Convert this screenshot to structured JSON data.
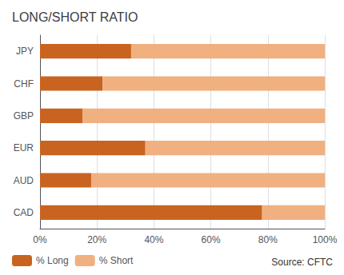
{
  "chart_data": {
    "type": "bar",
    "orientation": "horizontal",
    "stacked": true,
    "title": "LONG/SHORT RATIO",
    "categories": [
      "CAD",
      "AUD",
      "EUR",
      "GBP",
      "CHF",
      "JPY"
    ],
    "series": [
      {
        "name": "% Long",
        "color": "#C86420",
        "values": [
          78,
          18,
          37,
          15,
          22,
          32
        ]
      },
      {
        "name": "% Short",
        "color": "#F0B080",
        "values": [
          22,
          82,
          63,
          85,
          78,
          68
        ]
      }
    ],
    "xlim": [
      0,
      100
    ],
    "xticks": [
      {
        "value": 0,
        "label": "0%"
      },
      {
        "value": 20,
        "label": "20%"
      },
      {
        "value": 40,
        "label": "40%"
      },
      {
        "value": 60,
        "label": "60%"
      },
      {
        "value": 80,
        "label": "80%"
      },
      {
        "value": 100,
        "label": "100%"
      }
    ],
    "grid": true,
    "legend": "lower left",
    "annotations": [
      "Source: CFTC"
    ]
  }
}
